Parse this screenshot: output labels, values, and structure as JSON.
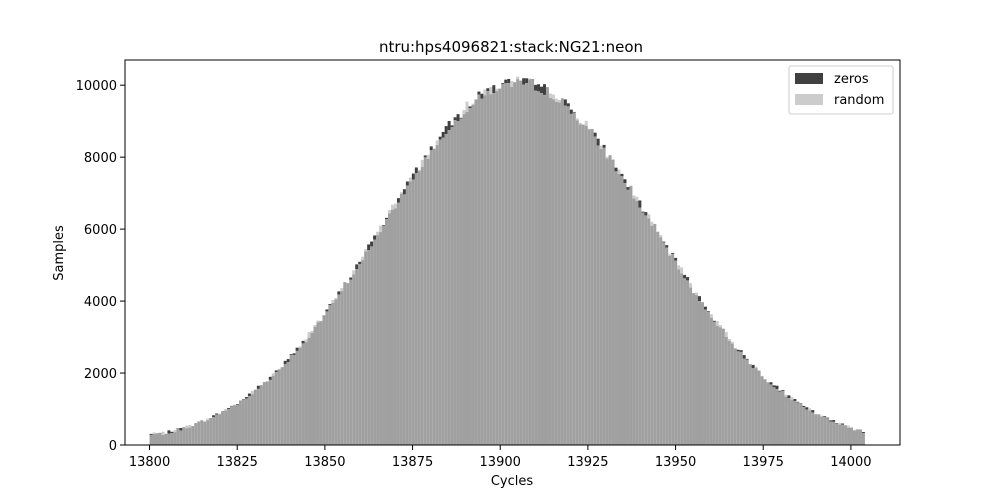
{
  "chart_data": {
    "type": "bar",
    "title": "ntru:hps4096821:stack:NG21:neon",
    "xlabel": "Cycles",
    "ylabel": "Samples",
    "xlim": [
      13793,
      14014
    ],
    "ylim": [
      0,
      10700
    ],
    "xticks": [
      13800,
      13825,
      13850,
      13875,
      13900,
      13925,
      13950,
      13975,
      14000
    ],
    "yticks": [
      0,
      2000,
      4000,
      6000,
      8000,
      10000
    ],
    "grid": false,
    "legend_position": "top-right",
    "overlap_color": "#a0a0a0",
    "histogram": {
      "x_start": 13800,
      "x_end": 14004,
      "bin_width": 0.85,
      "mean": 13905,
      "sigma": 38.5,
      "peak": 10080,
      "edge_value": 300
    },
    "series": [
      {
        "name": "zeros",
        "color": "#404040",
        "key_values": [
          [
            13800,
            300
          ],
          [
            13905,
            10150
          ],
          [
            14003,
            250
          ]
        ]
      },
      {
        "name": "random",
        "color": "#cccccc",
        "key_values": [
          [
            13800,
            280
          ],
          [
            13905,
            10100
          ],
          [
            14003,
            240
          ]
        ]
      }
    ]
  }
}
